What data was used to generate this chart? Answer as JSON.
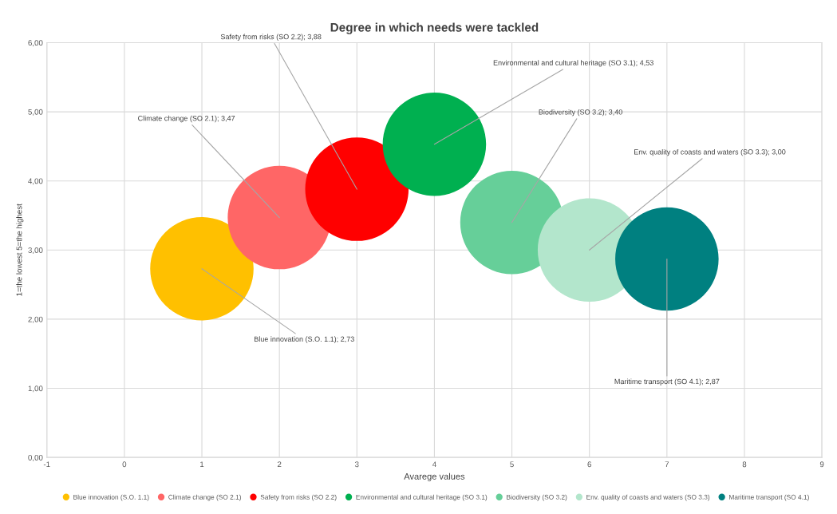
{
  "chart_data": {
    "type": "bubble",
    "title": "Degree in which needs were tackled",
    "xlabel": "Avarege values",
    "ylabel": "1=the lowest 5=the highest",
    "series": [
      {
        "name": "Blue innovation (S.O. 1.1)",
        "color": "#ffc000",
        "x": [
          1
        ],
        "values": [
          2.73
        ],
        "sizes": [
          1
        ]
      },
      {
        "name": "Climate change (SO 2.1)",
        "color": "#ff6666",
        "x": [
          2
        ],
        "values": [
          3.47
        ],
        "sizes": [
          1
        ]
      },
      {
        "name": "Safety from risks (SO 2.2)",
        "color": "#ff0000",
        "x": [
          3
        ],
        "values": [
          3.88
        ],
        "sizes": [
          1
        ]
      },
      {
        "name": "Environmental and cultural heritage (SO 3.1)",
        "color": "#00b050",
        "x": [
          4
        ],
        "values": [
          4.53
        ],
        "sizes": [
          1
        ]
      },
      {
        "name": "Biodiversity (SO 3.2)",
        "color": "#66cf99",
        "x": [
          5
        ],
        "values": [
          3.4
        ],
        "sizes": [
          1
        ]
      },
      {
        "name": "Env. quality of coasts and waters (SO 3.3)",
        "color": "#b3e6cc",
        "x": [
          6
        ],
        "values": [
          3.0
        ],
        "sizes": [
          1
        ]
      },
      {
        "name": "Maritime transport (SO 4.1)",
        "color": "#008080",
        "x": [
          7
        ],
        "values": [
          2.87
        ],
        "sizes": [
          1
        ]
      }
    ],
    "annotations": [
      {
        "text": "Blue innovation (S.O. 1.1); 2,73",
        "x": 1,
        "y": 2.73
      },
      {
        "text": "Climate change (SO 2.1); 3,47",
        "x": 2,
        "y": 3.47
      },
      {
        "text": "Safety from risks (SO 2.2); 3,88",
        "x": 3,
        "y": 3.88
      },
      {
        "text": "Environmental and cultural heritage (SO 3.1); 4,53",
        "x": 4,
        "y": 4.53
      },
      {
        "text": "Biodiversity (SO 3.2); 3,40",
        "x": 5,
        "y": 3.4
      },
      {
        "text": "Env. quality of coasts and waters (SO 3.3); 3,00",
        "x": 6,
        "y": 3.0
      },
      {
        "text": "Maritime transport (SO 4.1); 2,87",
        "x": 7,
        "y": 2.87
      }
    ],
    "xlim": [
      -1,
      9
    ],
    "xticks": [
      -1,
      0,
      1,
      2,
      3,
      4,
      5,
      6,
      7,
      8,
      9
    ],
    "ylim": [
      0,
      6
    ],
    "yticks": [
      {
        "value": 0,
        "label": "0,00"
      },
      {
        "value": 1,
        "label": "1,00"
      },
      {
        "value": 2,
        "label": "2,00"
      },
      {
        "value": 3,
        "label": "3,00"
      },
      {
        "value": 4,
        "label": "4,00"
      },
      {
        "value": 5,
        "label": "5,00"
      },
      {
        "value": 6,
        "label": "6,00"
      }
    ],
    "grid": true,
    "legend": "bottom"
  }
}
